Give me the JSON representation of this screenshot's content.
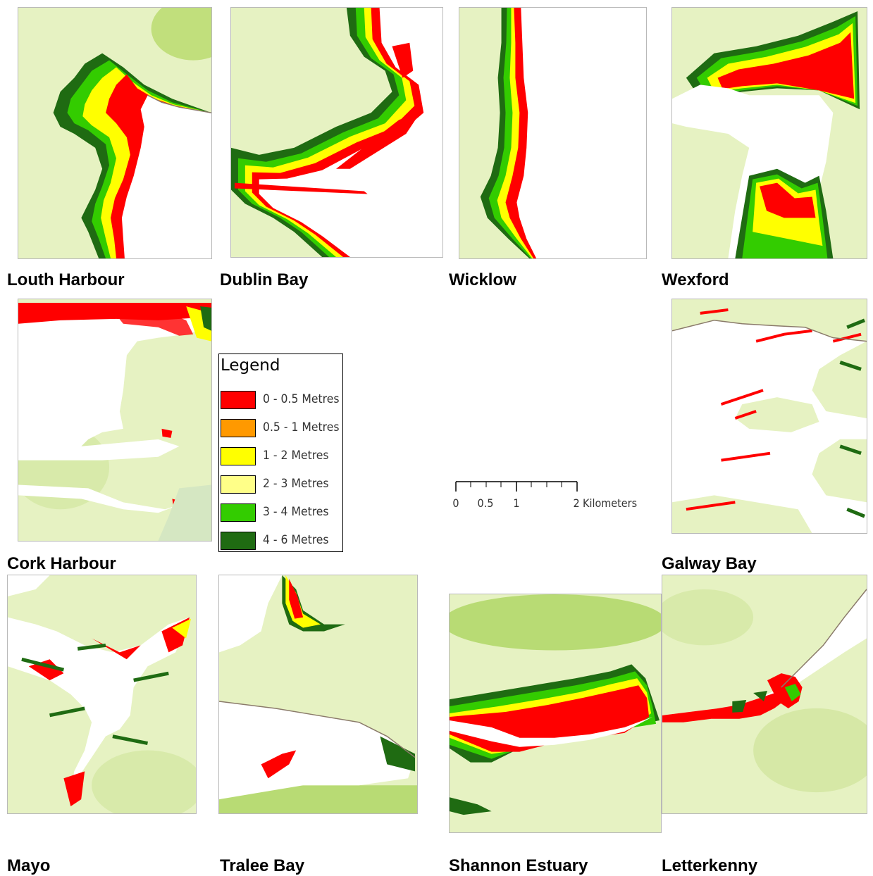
{
  "panels": {
    "louth": {
      "caption": "Louth Harbour"
    },
    "dublin": {
      "caption": "Dublin Bay"
    },
    "wicklow": {
      "caption": "Wicklow"
    },
    "wexford": {
      "caption": "Wexford"
    },
    "cork": {
      "caption": "Cork Harbour"
    },
    "galway": {
      "caption": "Galway Bay"
    },
    "mayo": {
      "caption": "Mayo"
    },
    "tralee": {
      "caption": "Tralee Bay"
    },
    "shannon": {
      "caption": "Shannon Estuary"
    },
    "letterkenny": {
      "caption": "Letterkenny"
    }
  },
  "legend": {
    "title": "Legend",
    "items": [
      {
        "label": "0 - 0.5 Metres",
        "color": "#ff0000"
      },
      {
        "label": "0.5 - 1 Metres",
        "color": "#ff9900"
      },
      {
        "label": "1 - 2 Metres",
        "color": "#ffff00"
      },
      {
        "label": "2 - 3 Metres",
        "color": "#ffff88"
      },
      {
        "label": "3 - 4 Metres",
        "color": "#33cc00"
      },
      {
        "label": "4 - 6 Metres",
        "color": "#1f6b12"
      }
    ]
  },
  "scalebar": {
    "ticks": [
      "0",
      "0.5",
      "1",
      "2"
    ],
    "unit": "Kilometers"
  },
  "colors": {
    "land": "#e6f2c2",
    "land_highland": "#a8d24a",
    "water": "#ffffff",
    "coastline": "#8a7a6a"
  }
}
